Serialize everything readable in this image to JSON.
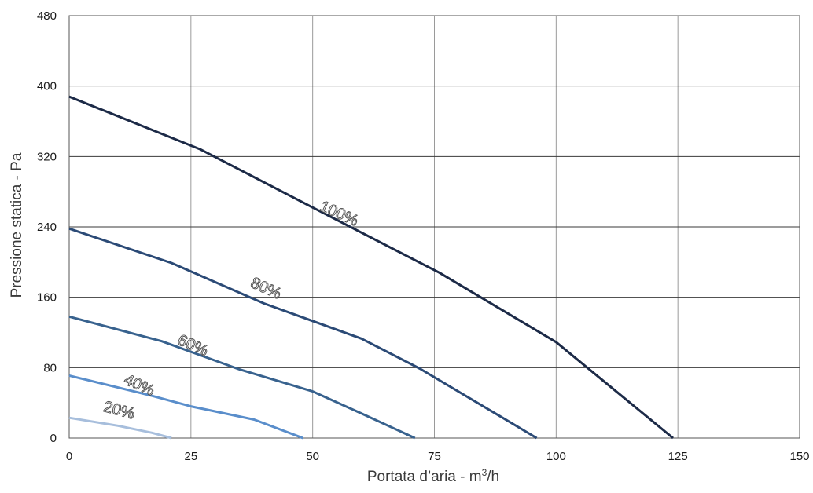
{
  "chart_data": {
    "type": "line",
    "title": "",
    "xlabel_main": "Portata d’aria - m",
    "xlabel_sup": "3",
    "xlabel_tail": "/h",
    "ylabel": "Pressione statica - Pa",
    "xlim": [
      0,
      150
    ],
    "ylim": [
      0,
      480
    ],
    "xticks": [
      0,
      25,
      50,
      75,
      100,
      125,
      150
    ],
    "yticks": [
      0,
      80,
      160,
      240,
      320,
      400,
      480
    ],
    "xtick_labels": [
      "0",
      "25",
      "50",
      "75",
      "100",
      "125",
      "150"
    ],
    "ytick_labels": [
      "0",
      "80",
      "160",
      "240",
      "320",
      "400",
      "480"
    ],
    "grid": true,
    "series": [
      {
        "name": "100%",
        "color": "#1c2a47",
        "x": [
          0,
          27,
          50,
          76,
          100,
          124
        ],
        "y": [
          388,
          328,
          262,
          188,
          109,
          0
        ],
        "label_at": [
          55,
          250
        ],
        "label_angle": 24
      },
      {
        "name": "80%",
        "color": "#2b4a76",
        "x": [
          0,
          21,
          40,
          60,
          72,
          96
        ],
        "y": [
          238,
          199,
          153,
          113,
          79,
          0
        ],
        "label_at": [
          40,
          165
        ],
        "label_angle": 24
      },
      {
        "name": "60%",
        "color": "#38628e",
        "x": [
          0,
          19,
          35,
          50,
          60,
          71
        ],
        "y": [
          138,
          110,
          78,
          53,
          28,
          0
        ],
        "label_at": [
          25,
          100
        ],
        "label_angle": 24
      },
      {
        "name": "40%",
        "color": "#5a8ecb",
        "x": [
          0,
          17,
          25,
          38,
          48
        ],
        "y": [
          71,
          48,
          36,
          21,
          0
        ],
        "label_at": [
          14,
          55
        ],
        "label_angle": 24
      },
      {
        "name": "20%",
        "color": "#a7bedc",
        "x": [
          0,
          10,
          17,
          21
        ],
        "y": [
          23,
          14,
          6,
          0
        ],
        "label_at": [
          10,
          26
        ],
        "label_angle": 15
      }
    ]
  }
}
